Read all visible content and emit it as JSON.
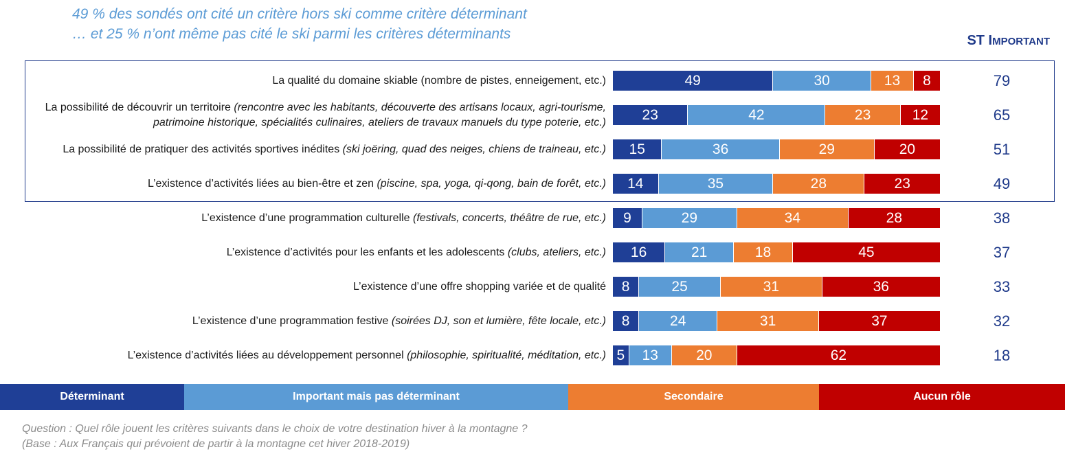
{
  "headline": {
    "line1": "49 % des sondés ont cité un critère hors ski comme critère déterminant",
    "line2": "… et 25 % n’ont même pas cité le ski parmi les critères déterminants"
  },
  "st_header": {
    "part1": "ST I",
    "part2": "MPORTANT"
  },
  "colors": {
    "determinant": "#1f3f96",
    "important": "#5b9bd5",
    "secondaire": "#ed7d31",
    "aucun": "#c00000",
    "text_blue": "#1f3a8a"
  },
  "legend": [
    {
      "label": "Déterminant",
      "color": "#1f3f96"
    },
    {
      "label": "Important mais pas déterminant",
      "color": "#5b9bd5"
    },
    {
      "label": "Secondaire",
      "color": "#ed7d31"
    },
    {
      "label": "Aucun rôle",
      "color": "#c00000"
    }
  ],
  "footer": {
    "question": "Question : Quel rôle jouent les critères suivants dans le choix de votre destination hiver à la montagne ?",
    "base": "(Base : Aux Français qui prévoient de partir à la montagne cet hiver 2018-2019)"
  },
  "chart_data": {
    "type": "bar",
    "orientation": "horizontal",
    "stacked": true,
    "series_names": [
      "Déterminant",
      "Important mais pas déterminant",
      "Secondaire",
      "Aucun rôle"
    ],
    "rows": [
      {
        "label": "La qualité du domaine skiable",
        "description": "(nombre de pistes, enneigement, etc.)",
        "description_style": "normal",
        "values": [
          49,
          30,
          13,
          8
        ],
        "st": "79",
        "highlighted": true
      },
      {
        "label": "La possibilité de découvrir un territoire",
        "description": "(rencontre avec les habitants, découverte des artisans locaux, agri-tourisme, patrimoine historique, spécialités culinaires, ateliers de travaux manuels du type poterie, etc.)",
        "description_style": "italic",
        "values": [
          23,
          42,
          23,
          12
        ],
        "st": "65",
        "highlighted": true
      },
      {
        "label": "La possibilité de pratiquer des activités sportives inédites",
        "description": "(ski joëring, quad des neiges, chiens de traineau, etc.)",
        "description_style": "italic",
        "values": [
          15,
          36,
          29,
          20
        ],
        "st": "51",
        "highlighted": true
      },
      {
        "label": "L’existence d’activités liées au bien-être et zen",
        "description": "(piscine, spa, yoga, qi-qong, bain de forêt, etc.)",
        "description_style": "italic",
        "values": [
          14,
          35,
          28,
          23
        ],
        "st": "49",
        "highlighted": true
      },
      {
        "label": "L’existence d’une programmation culturelle",
        "description": "(festivals, concerts, théâtre de rue, etc.)",
        "description_style": "italic",
        "values": [
          9,
          29,
          34,
          28
        ],
        "st": "38",
        "highlighted": false
      },
      {
        "label": "L’existence d’activités pour les enfants et les adolescents",
        "description": "(clubs, ateliers, etc.)",
        "description_style": "italic",
        "values": [
          16,
          21,
          18,
          45
        ],
        "st": "37",
        "highlighted": false
      },
      {
        "label": "L’existence d’une offre shopping variée et de qualité",
        "description": "",
        "description_style": "italic",
        "values": [
          8,
          25,
          31,
          36
        ],
        "st": "33",
        "highlighted": false
      },
      {
        "label": "L’existence d’une programmation festive",
        "description": "(soirées DJ, son et lumière, fête locale, etc.)",
        "description_style": "italic",
        "values": [
          8,
          24,
          31,
          37
        ],
        "st": "32",
        "highlighted": false
      },
      {
        "label": "L’existence d’activités liées au développement personnel",
        "description": "(philosophie, spiritualité, méditation, etc.)",
        "description_style": "italic",
        "values": [
          5,
          13,
          20,
          62
        ],
        "st": "18",
        "highlighted": false
      }
    ]
  }
}
